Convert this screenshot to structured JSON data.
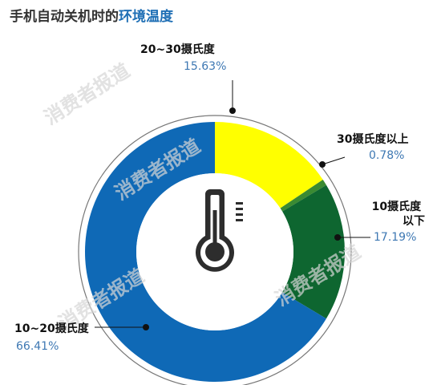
{
  "title": {
    "prefix": "手机自动关机时的",
    "highlight": "环境温度"
  },
  "watermark": "消费者报道",
  "colors": {
    "title_highlight": "#1f6fb5",
    "value_text": "#3e78b3"
  },
  "chart_data": {
    "type": "pie",
    "variant": "donut",
    "title": "手机自动关机时的环境温度",
    "center_icon": "thermometer-icon",
    "legend": "none",
    "slices": [
      {
        "label": "20~30摄氏度",
        "value": 15.63,
        "value_label": "15.63%",
        "color": "#ffff00"
      },
      {
        "label": "30摄氏度以上",
        "value": 0.78,
        "value_label": "0.78%",
        "color": "#3a8a32"
      },
      {
        "label": "10摄氏度以下",
        "value": 17.19,
        "value_label": "17.19%",
        "color": "#0e6630"
      },
      {
        "label": "10~20摄氏度",
        "value": 66.41,
        "value_label": "66.41%",
        "color": "#0f69b6"
      }
    ]
  }
}
